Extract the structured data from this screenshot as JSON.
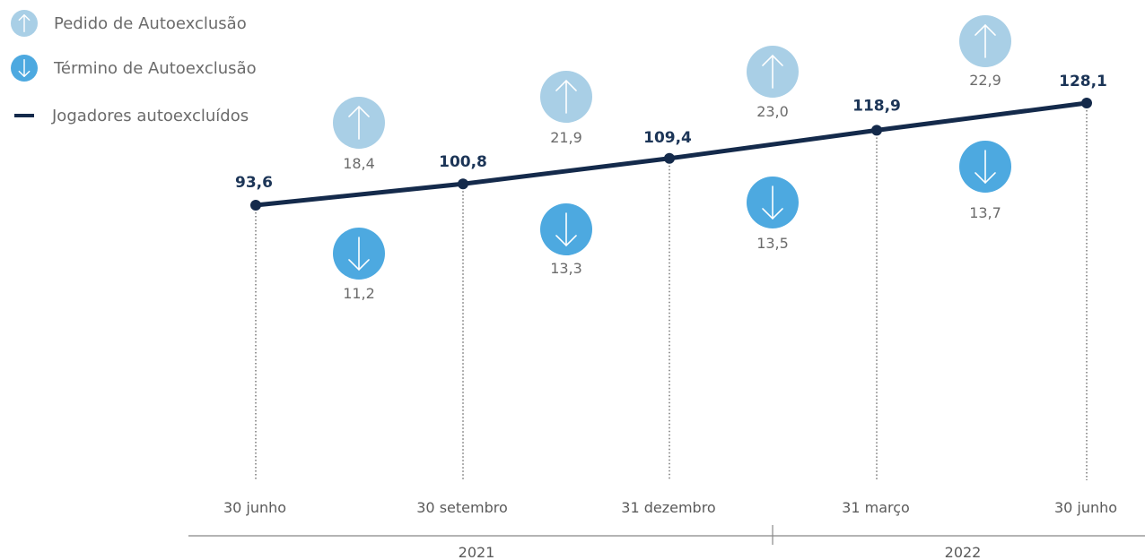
{
  "colors": {
    "line": "#142a4b",
    "request_bubble": "#a9cfe6",
    "end_bubble": "#4da9e0",
    "guide": "#555555",
    "axis": "#888888",
    "arrow": "#ffffff"
  },
  "icons": {
    "request": "arrow-up-circle-icon",
    "end": "arrow-down-circle-icon",
    "series": "dash-line-icon"
  },
  "legend": [
    {
      "key": "requests",
      "label": "Pedido de Autoexclusão",
      "icon": "arrow-up-circle-icon"
    },
    {
      "key": "ends",
      "label": "Término de Autoexclusão",
      "icon": "arrow-down-circle-icon"
    },
    {
      "key": "players",
      "label": "Jogadores autoexcluídos",
      "icon": "dash-line-icon"
    }
  ],
  "chart_data": {
    "type": "line",
    "categories": [
      "30 junho",
      "30 setembro",
      "31 dezembro",
      "31  março",
      "30  junho"
    ],
    "years": [
      {
        "label": "2021",
        "categories": [
          "30 junho",
          "30 setembro",
          "31 dezembro"
        ]
      },
      {
        "label": "2022",
        "categories": [
          "31  março",
          "30  junho"
        ]
      }
    ],
    "series": [
      {
        "name": "Jogadores autoexcluídos",
        "values": [
          93.6,
          100.8,
          109.4,
          118.9,
          128.1
        ],
        "labels": [
          "93,6",
          "100,8",
          "109,4",
          "118,9",
          "128,1"
        ]
      }
    ],
    "period_flows": [
      {
        "period": "30 junho – 30 setembro",
        "request": 18.4,
        "request_label": "18,4",
        "end": 11.2,
        "end_label": "11,2"
      },
      {
        "period": "30 setembro – 31 dezembro",
        "request": 21.9,
        "request_label": "21,9",
        "end": 13.3,
        "end_label": "13,3"
      },
      {
        "period": "31 dezembro – 31 março",
        "request": 23.0,
        "request_label": "23,0",
        "end": 13.5,
        "end_label": "13,5"
      },
      {
        "period": "31 março – 30 junho",
        "request": 22.9,
        "request_label": "22,9",
        "end": 13.7,
        "end_label": "13,7"
      }
    ],
    "flow_series": [
      {
        "name": "Pedido de Autoexclusão",
        "key": "request"
      },
      {
        "name": "Término de Autoexclusão",
        "key": "end"
      }
    ],
    "title": "",
    "xlabel": "",
    "ylabel": "",
    "ylim": [
      0,
      140
    ],
    "grid": false,
    "legend_position": "top-left"
  }
}
